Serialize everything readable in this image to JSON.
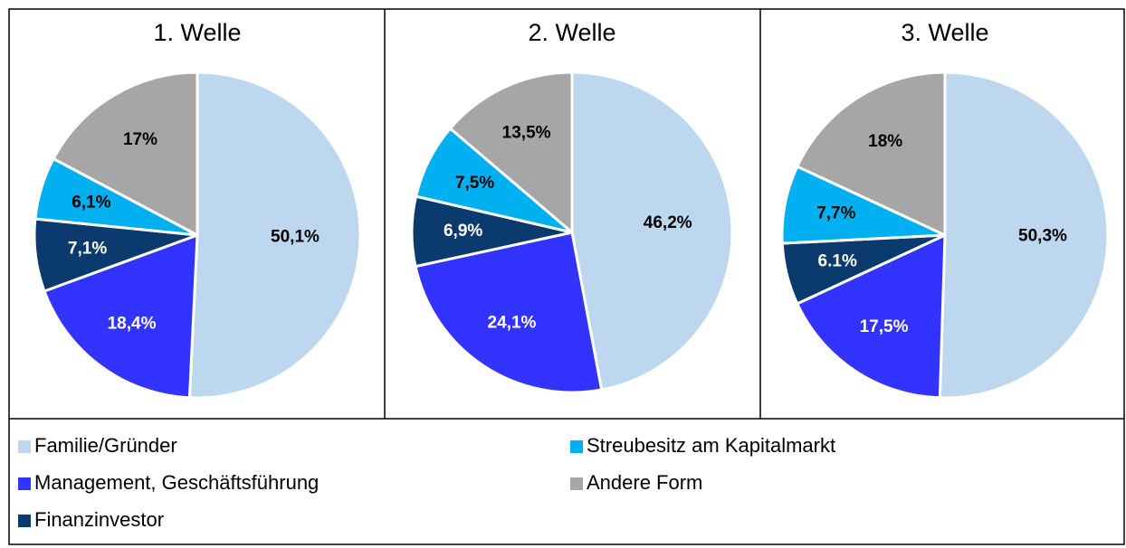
{
  "chart_data": [
    {
      "type": "pie",
      "title": "1. Welle",
      "values": [
        50.1,
        18.4,
        7.1,
        6.1,
        17
      ],
      "value_labels": [
        "50,1%",
        "18,4%",
        "7,1%",
        "6,1%",
        "17%"
      ]
    },
    {
      "type": "pie",
      "title": "2. Welle",
      "values": [
        46.2,
        24.1,
        6.9,
        7.5,
        13.5
      ],
      "value_labels": [
        "46,2%",
        "24,1%",
        "6,9%",
        "7,5%",
        "13,5%"
      ]
    },
    {
      "type": "pie",
      "title": "3. Welle",
      "values": [
        50.3,
        17.5,
        6.1,
        7.7,
        18
      ],
      "value_labels": [
        "50,3%",
        "17,5%",
        "6.1%",
        "7,7%",
        "18%"
      ]
    }
  ],
  "legend": {
    "categories": [
      "Familie/Gründer",
      "Management, Geschäftsführung",
      "Finanzinvestor",
      "Streubesitz am Kapitalmarkt",
      "Andere Form"
    ],
    "colors": [
      "#bdd7ee",
      "#3333ff",
      "#0b3a6e",
      "#00b0f0",
      "#a6a6a6"
    ],
    "label_colors": [
      "#000000",
      "#ffffff",
      "#ffffff",
      "#000000",
      "#000000"
    ]
  }
}
